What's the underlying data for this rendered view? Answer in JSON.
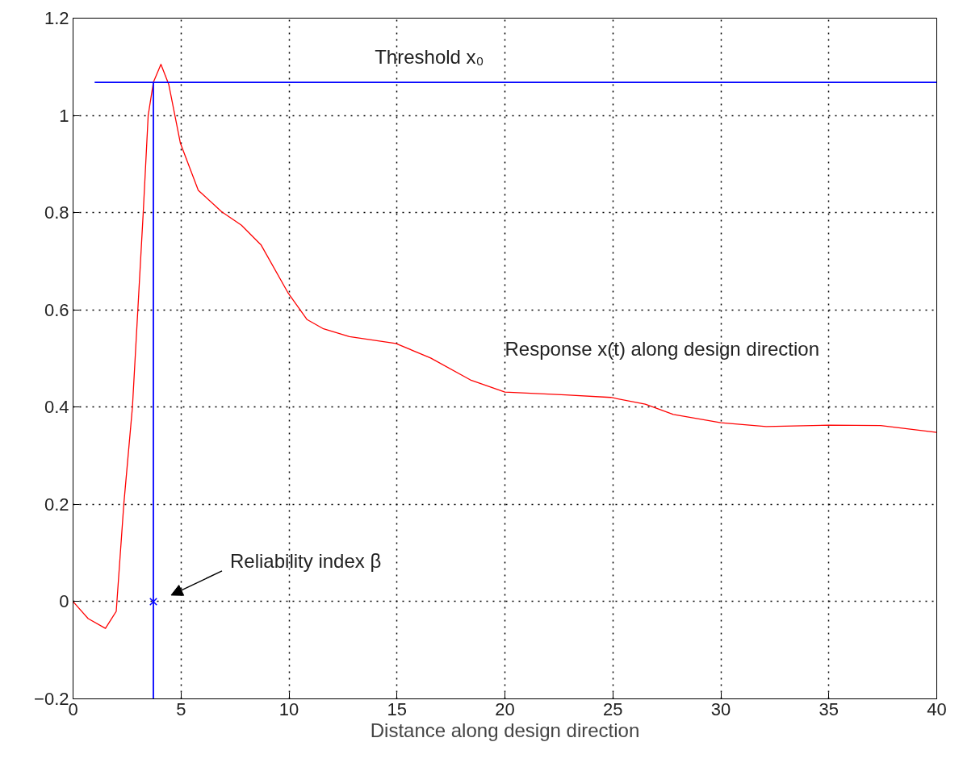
{
  "chart_data": {
    "type": "line",
    "xlabel": "Distance along design direction",
    "xlim": [
      0,
      40
    ],
    "ylim": [
      -0.2,
      1.2
    ],
    "xticks": [
      0,
      5,
      10,
      15,
      20,
      25,
      30,
      35,
      40
    ],
    "yticks": [
      {
        "value": -0.2,
        "label": "−0.2"
      },
      0,
      0.2,
      0.4,
      0.6,
      0.8,
      1,
      1.2
    ],
    "grid": true,
    "line_style": "solid",
    "marker": "none",
    "series": [
      {
        "color": "#ff0000",
        "x": [
          0,
          0.7,
          1.5,
          2,
          2.35,
          2.75,
          3.0,
          3.25,
          3.48,
          3.72,
          4.07,
          4.43,
          4.97,
          5.8,
          6.88,
          7.8,
          8.7,
          9.97,
          10.84,
          11.6,
          12.8,
          14.95,
          16.56,
          18.4,
          20.0,
          22.8,
          24.9,
          26.5,
          27.8,
          30.0,
          32.1,
          35.0,
          37.4,
          40
        ],
        "values": [
          0,
          -0.035,
          -0.055,
          -0.02,
          0.2,
          0.4,
          0.6,
          0.8,
          1.0,
          1.068,
          1.105,
          1.064,
          0.943,
          0.846,
          0.802,
          0.774,
          0.734,
          0.634,
          0.58,
          0.561,
          0.545,
          0.531,
          0.501,
          0.456,
          0.431,
          0.425,
          0.42,
          0.406,
          0.385,
          0.368,
          0.36,
          0.363,
          0.362,
          0.348
        ]
      },
      {
        "color": "#0000ff",
        "x": [
          1,
          40
        ],
        "values": [
          1.068,
          1.068
        ]
      },
      {
        "color": "#0000ff",
        "x": [
          3.72,
          3.72
        ],
        "values": [
          -0.2,
          1.068
        ]
      },
      {
        "type": "scatter",
        "marker": "cross",
        "color": "#0000ff",
        "x": [
          3.72
        ],
        "values": [
          0
        ]
      }
    ],
    "annotations": [
      {
        "text": "Threshold x₀",
        "x": 16.5,
        "y": 1.068
      },
      {
        "text": "Response x(t) along design direction",
        "x": 20,
        "y": 0.431
      },
      "Reliability index β"
    ]
  }
}
